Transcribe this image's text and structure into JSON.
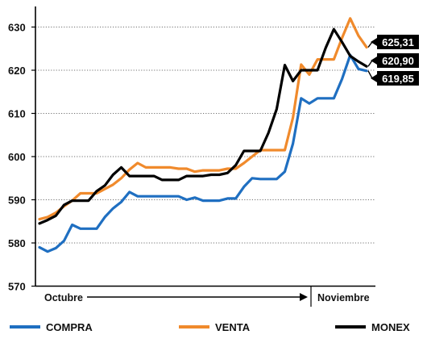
{
  "chart_data": {
    "type": "line",
    "title": "",
    "xlabel": "",
    "ylabel": "",
    "ylim": [
      570,
      634
    ],
    "yticks": [
      570,
      580,
      590,
      600,
      610,
      620,
      630
    ],
    "grid": "horizontal-dotted",
    "legend_position": "bottom",
    "x_axis_labels": {
      "start": "Octubre",
      "end": "Noviembre"
    },
    "series": [
      {
        "name": "COMPRA",
        "color": "#1f6fc1",
        "values": [
          579.0,
          578.0,
          578.8,
          580.5,
          584.2,
          583.3,
          583.3,
          583.3,
          586.0,
          588.0,
          589.5,
          591.8,
          590.8,
          590.8,
          590.8,
          590.8,
          590.8,
          590.8,
          590.0,
          590.5,
          589.8,
          589.8,
          589.8,
          590.3,
          590.3,
          593.0,
          595.0,
          594.8,
          594.8,
          594.8,
          596.5,
          603.0,
          613.5,
          612.3,
          613.5,
          613.5,
          613.5,
          618.0,
          623.5,
          620.3,
          619.85
        ]
      },
      {
        "name": "VENTA",
        "color": "#f08a2c",
        "values": [
          585.5,
          586.0,
          587.0,
          588.5,
          589.8,
          591.5,
          591.5,
          591.5,
          592.5,
          593.5,
          595.0,
          597.0,
          598.5,
          597.5,
          597.5,
          597.5,
          597.5,
          597.2,
          597.2,
          596.5,
          596.8,
          596.8,
          596.8,
          597.2,
          597.2,
          598.5,
          600.0,
          601.5,
          601.5,
          601.5,
          601.5,
          609.0,
          621.3,
          619.0,
          622.5,
          622.5,
          622.5,
          627.5,
          632.0,
          628.0,
          625.31
        ]
      },
      {
        "name": "MONEX",
        "color": "#000000",
        "values": [
          584.5,
          585.3,
          586.3,
          588.8,
          589.8,
          589.8,
          589.8,
          592.0,
          593.3,
          595.8,
          597.5,
          595.5,
          595.5,
          595.5,
          595.5,
          594.6,
          594.6,
          594.6,
          595.5,
          595.5,
          595.5,
          595.8,
          595.8,
          596.2,
          598.0,
          601.3,
          601.3,
          601.3,
          605.5,
          611.0,
          621.2,
          617.5,
          620.0,
          620.0,
          620.0,
          625.2,
          629.5,
          626.5,
          623.3,
          622.0,
          620.9
        ]
      }
    ],
    "end_labels": [
      {
        "series": "VENTA",
        "text": "625,31"
      },
      {
        "series": "MONEX",
        "text": "620,90"
      },
      {
        "series": "COMPRA",
        "text": "619,85"
      }
    ]
  }
}
